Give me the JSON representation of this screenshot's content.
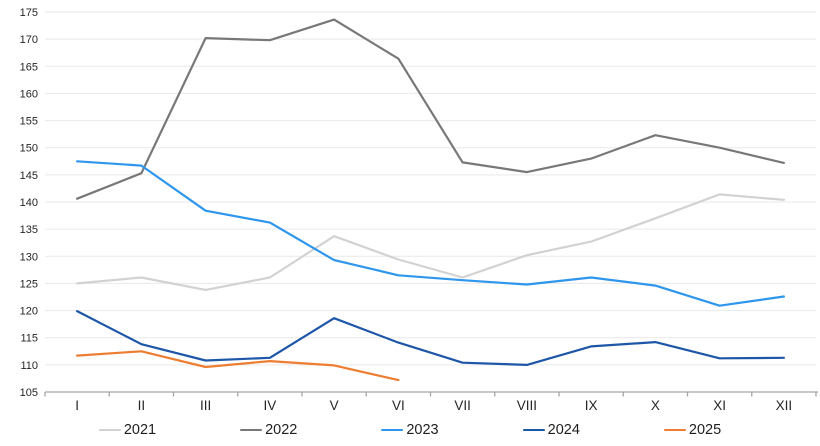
{
  "chart_data": {
    "type": "line",
    "title": "",
    "xlabel": "",
    "ylabel": "",
    "categories": [
      "I",
      "II",
      "III",
      "IV",
      "V",
      "VI",
      "VII",
      "VIII",
      "IX",
      "X",
      "XI",
      "XII"
    ],
    "y_axis": {
      "min": 105,
      "max": 175,
      "step": 5,
      "ticks": [
        105,
        110,
        115,
        120,
        125,
        130,
        135,
        140,
        145,
        150,
        155,
        160,
        165,
        170,
        175
      ]
    },
    "grid": true,
    "legend_position": "bottom",
    "series": [
      {
        "name": "2021",
        "color": "#D2D2D2",
        "values": [
          125.0,
          126.1,
          123.8,
          126.1,
          133.7,
          129.4,
          126.1,
          130.2,
          132.7,
          137.0,
          141.4,
          140.4
        ]
      },
      {
        "name": "2022",
        "color": "#787878",
        "values": [
          140.6,
          145.3,
          170.2,
          169.8,
          173.6,
          166.4,
          147.3,
          145.5,
          148.0,
          152.3,
          150.0,
          147.2
        ]
      },
      {
        "name": "2023",
        "color": "#2E96EC",
        "values": [
          147.5,
          146.7,
          138.4,
          136.2,
          129.3,
          126.5,
          125.6,
          124.8,
          126.1,
          124.6,
          120.9,
          122.6
        ]
      },
      {
        "name": "2024",
        "color": "#1E56A8",
        "values": [
          119.9,
          113.8,
          110.8,
          111.3,
          118.6,
          114.1,
          110.4,
          110.0,
          113.4,
          114.2,
          111.2,
          111.3
        ]
      },
      {
        "name": "2025",
        "color": "#ED7D31",
        "values": [
          111.7,
          112.5,
          109.6,
          110.7,
          109.9,
          107.2
        ]
      }
    ]
  },
  "style": {
    "axis_color": "#A6A6A6",
    "gridline_color": "#E9E9E9",
    "label_color": "#262626",
    "background": "#FFFFFF",
    "line_width": 2.2
  }
}
